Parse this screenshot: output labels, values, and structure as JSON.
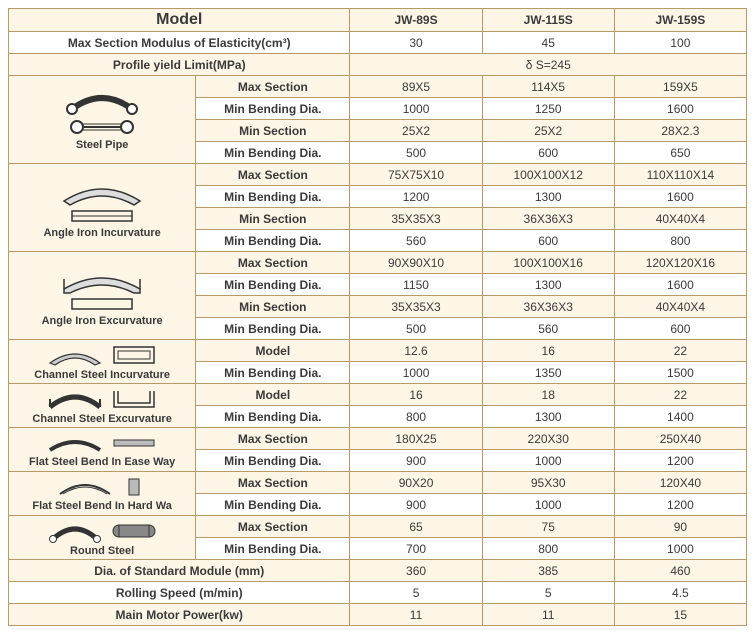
{
  "header": {
    "model": "Model",
    "cols": [
      "JW-89S",
      "JW-115S",
      "JW-159S"
    ]
  },
  "topRows": [
    {
      "label": "Max Section Modulus of Elasticity(cm³)",
      "vals": [
        "30",
        "45",
        "100"
      ]
    },
    {
      "label": "Profile yield Limit(MPa)",
      "merged": "δ S=245"
    }
  ],
  "groups": [
    {
      "name": "Steel Pipe",
      "icon": "steel-pipe",
      "rows": [
        {
          "label": "Max Section",
          "vals": [
            "89X5",
            "114X5",
            "159X5"
          ],
          "alt": true
        },
        {
          "label": "Min Bending Dia.",
          "vals": [
            "1000",
            "1250",
            "1600"
          ],
          "alt": false
        },
        {
          "label": "Min Section",
          "vals": [
            "25X2",
            "25X2",
            "28X2.3"
          ],
          "alt": true
        },
        {
          "label": "Min Bending Dia.",
          "vals": [
            "500",
            "600",
            "650"
          ],
          "alt": false
        }
      ]
    },
    {
      "name": "Angle Iron Incurvature",
      "icon": "angle-in",
      "rows": [
        {
          "label": "Max Section",
          "vals": [
            "75X75X10",
            "100X100X12",
            "110X110X14"
          ],
          "alt": true
        },
        {
          "label": "Min Bending Dia.",
          "vals": [
            "1200",
            "1300",
            "1600"
          ],
          "alt": false
        },
        {
          "label": "Min Section",
          "vals": [
            "35X35X3",
            "36X36X3",
            "40X40X4"
          ],
          "alt": true
        },
        {
          "label": "Min Bending Dia.",
          "vals": [
            "560",
            "600",
            "800"
          ],
          "alt": false
        }
      ]
    },
    {
      "name": "Angle Iron Excurvature",
      "icon": "angle-ex",
      "rows": [
        {
          "label": "Max Section",
          "vals": [
            "90X90X10",
            "100X100X16",
            "120X120X16"
          ],
          "alt": true
        },
        {
          "label": "Min Bending Dia.",
          "vals": [
            "1150",
            "1300",
            "1600"
          ],
          "alt": false
        },
        {
          "label": "Min Section",
          "vals": [
            "35X35X3",
            "36X36X3",
            "40X40X4"
          ],
          "alt": true
        },
        {
          "label": "Min Bending Dia.",
          "vals": [
            "500",
            "560",
            "600"
          ],
          "alt": false
        }
      ]
    },
    {
      "name": "Channel Steel Incurvature",
      "icon": "channel-in",
      "rows": [
        {
          "label": "Model",
          "vals": [
            "12.6",
            "16",
            "22"
          ],
          "alt": true
        },
        {
          "label": "Min Bending Dia.",
          "vals": [
            "1000",
            "1350",
            "1500"
          ],
          "alt": false
        }
      ]
    },
    {
      "name": "Channel Steel Excurvature",
      "icon": "channel-ex",
      "rows": [
        {
          "label": "Model",
          "vals": [
            "16",
            "18",
            "22"
          ],
          "alt": true
        },
        {
          "label": "Min Bending Dia.",
          "vals": [
            "800",
            "1300",
            "1400"
          ],
          "alt": false
        }
      ]
    },
    {
      "name": "Flat Steel Bend In Ease Way",
      "icon": "flat-ease",
      "rows": [
        {
          "label": "Max Section",
          "vals": [
            "180X25",
            "220X30",
            "250X40"
          ],
          "alt": true
        },
        {
          "label": "Min Bending Dia.",
          "vals": [
            "900",
            "1000",
            "1200"
          ],
          "alt": false
        }
      ]
    },
    {
      "name": "Flat Steel Bend In Hard Wa",
      "icon": "flat-hard",
      "rows": [
        {
          "label": "Max Section",
          "vals": [
            "90X20",
            "95X30",
            "120X40"
          ],
          "alt": true
        },
        {
          "label": "Min Bending Dia.",
          "vals": [
            "900",
            "1000",
            "1200"
          ],
          "alt": false
        }
      ]
    },
    {
      "name": "Round Steel",
      "icon": "round-steel",
      "rows": [
        {
          "label": "Max Section",
          "vals": [
            "65",
            "75",
            "90"
          ],
          "alt": true
        },
        {
          "label": "Min Bending Dia.",
          "vals": [
            "700",
            "800",
            "1000"
          ],
          "alt": false
        }
      ]
    }
  ],
  "bottomRows": [
    {
      "label": "Dia. of Standard Module (mm)",
      "vals": [
        "360",
        "385",
        "460"
      ],
      "alt": true
    },
    {
      "label": "Rolling Speed (m/min)",
      "vals": [
        "5",
        "5",
        "4.5"
      ],
      "alt": false
    },
    {
      "label": "Main Motor Power(kw)",
      "vals": [
        "11",
        "11",
        "15"
      ],
      "alt": true
    }
  ],
  "style": {
    "border_color": "#b89b64",
    "alt_bg": "#fdf6e6",
    "plain_bg": "#ffffff",
    "text_color": "#3a3a3a",
    "font_size": 12,
    "icon_stroke": "#333333"
  }
}
